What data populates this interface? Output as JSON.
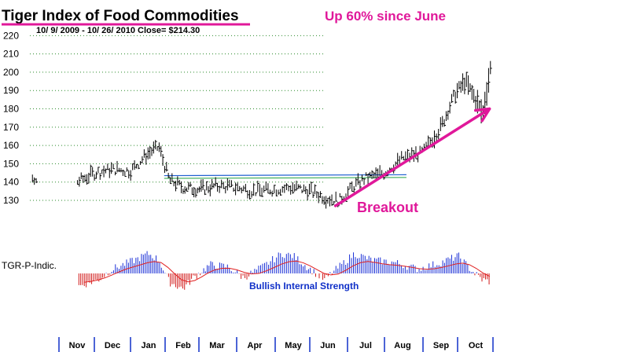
{
  "chart_data": [
    {
      "type": "ohlc",
      "title": "Tiger Index of Food Commodities",
      "subtitle": "10/ 9/ 2009 -  10/ 26/ 2010   Close= $214.30",
      "annotations": {
        "headline": "Up 60% since June",
        "breakout": "Breakout"
      },
      "ylim": [
        127,
        221
      ],
      "yticks": [
        130,
        140,
        150,
        160,
        170,
        180,
        190,
        200,
        210,
        220
      ],
      "months": [
        "Nov",
        "Dec",
        "Jan",
        "Feb",
        "Mar",
        "Apr",
        "May",
        "Jun",
        "Jul",
        "Aug",
        "Sep",
        "Oct"
      ],
      "resistance_level": 143.5,
      "breakout_trendline": {
        "from_month_index": 7.2,
        "from_value": 127,
        "to_month_index": 11.4,
        "to_value": 180
      },
      "monthly_close_path": [
        [
          0.0,
          140
        ],
        [
          0.5,
          145
        ],
        [
          1.0,
          147
        ],
        [
          1.5,
          146
        ],
        [
          2.0,
          156
        ],
        [
          2.3,
          159
        ],
        [
          2.6,
          141
        ],
        [
          3.0,
          137
        ],
        [
          3.5,
          136
        ],
        [
          4.0,
          138
        ],
        [
          4.5,
          137
        ],
        [
          5.0,
          135
        ],
        [
          5.5,
          136
        ],
        [
          6.0,
          137
        ],
        [
          6.5,
          135
        ],
        [
          7.0,
          131
        ],
        [
          7.3,
          130
        ],
        [
          7.7,
          138
        ],
        [
          8.0,
          142
        ],
        [
          8.5,
          145
        ],
        [
          9.0,
          153
        ],
        [
          9.5,
          156
        ],
        [
          10.0,
          170
        ],
        [
          10.4,
          188
        ],
        [
          10.7,
          195
        ],
        [
          11.0,
          185
        ],
        [
          11.2,
          177
        ],
        [
          11.5,
          210
        ],
        [
          11.8,
          214.3
        ]
      ]
    },
    {
      "type": "bar",
      "label": "TGR-P-Indic.",
      "annotation": "Bullish Internal Strength",
      "colors": {
        "positive": "#1a2fd6",
        "negative": "#d11a1a",
        "ma_line": "#e02020"
      },
      "indicator_path": [
        [
          0.0,
          -0.6
        ],
        [
          0.6,
          -0.3
        ],
        [
          1.0,
          0.2
        ],
        [
          1.6,
          0.6
        ],
        [
          2.0,
          0.9
        ],
        [
          2.3,
          0.6
        ],
        [
          2.6,
          -0.4
        ],
        [
          3.0,
          -0.7
        ],
        [
          3.3,
          -0.2
        ],
        [
          3.8,
          0.4
        ],
        [
          4.3,
          0.3
        ],
        [
          4.7,
          -0.2
        ],
        [
          5.2,
          0.3
        ],
        [
          5.7,
          0.9
        ],
        [
          6.0,
          0.8
        ],
        [
          6.4,
          0.3
        ],
        [
          6.9,
          -0.3
        ],
        [
          7.3,
          0.3
        ],
        [
          7.7,
          0.9
        ],
        [
          8.2,
          0.6
        ],
        [
          8.8,
          0.5
        ],
        [
          9.4,
          0.2
        ],
        [
          10.0,
          0.5
        ],
        [
          10.5,
          0.8
        ],
        [
          10.9,
          0.1
        ],
        [
          11.2,
          -0.3
        ],
        [
          11.5,
          -0.4
        ],
        [
          11.8,
          -0.3
        ]
      ]
    }
  ]
}
